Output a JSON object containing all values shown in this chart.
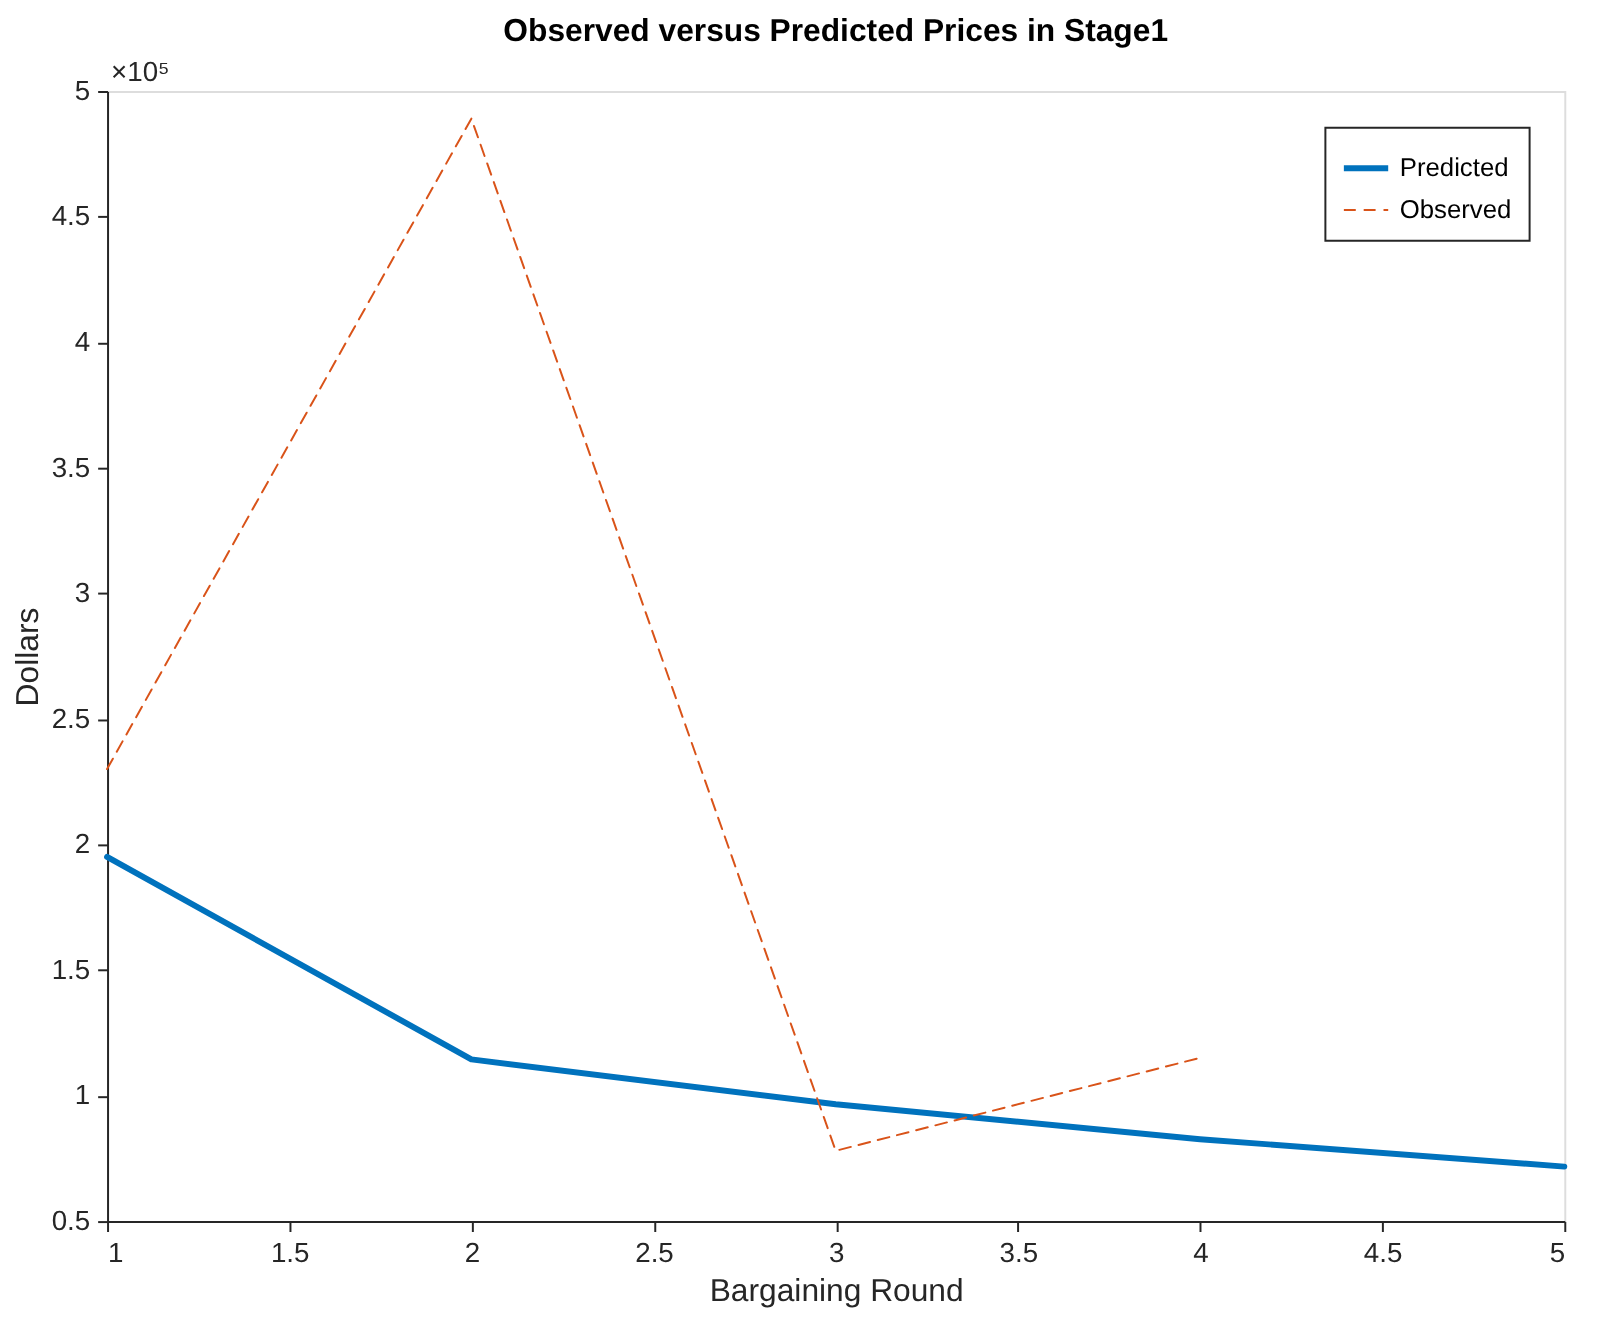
{
  "chart_data": {
    "type": "line",
    "title": "Observed versus Predicted Prices in Stage1",
    "xlabel": "Bargaining Round",
    "ylabel": "Dollars",
    "x": [
      1,
      2,
      3,
      4,
      5
    ],
    "series": [
      {
        "name": "Predicted",
        "color": "#0072bd",
        "line_style": "solid",
        "values": [
          1.95,
          1.144,
          0.965,
          0.826,
          0.717
        ]
      },
      {
        "name": "Observed",
        "color": "#d95319",
        "line_style": "dashed",
        "x": [
          1,
          2,
          3,
          4
        ],
        "values": [
          2.3,
          4.89,
          0.78,
          1.15
        ]
      }
    ],
    "xlim": [
      1,
      5
    ],
    "xticks": [
      1,
      1.5,
      2,
      2.5,
      3,
      3.5,
      4,
      4.5,
      5
    ],
    "ylim": [
      0.5,
      5
    ],
    "yticks": [
      0.5,
      1,
      1.5,
      2,
      2.5,
      3,
      3.5,
      4,
      4.5,
      5
    ],
    "annotations": [
      "×10⁵"
    ],
    "grid": false,
    "legend": "top right"
  }
}
